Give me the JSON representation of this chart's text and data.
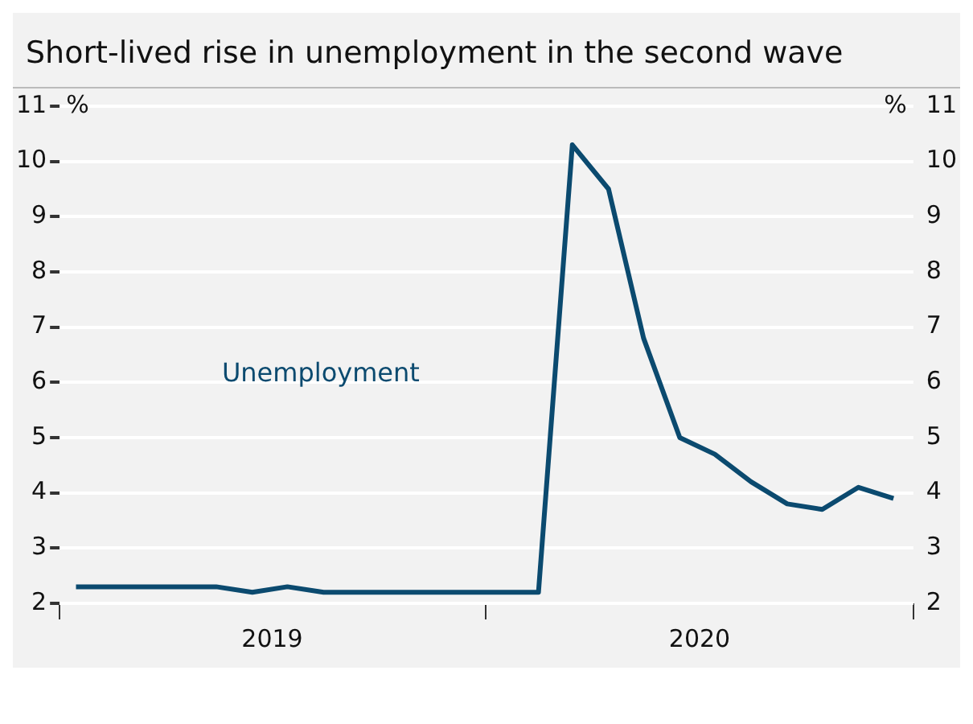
{
  "chart_data": {
    "type": "line",
    "title": "Short-lived rise in unemployment in the second wave",
    "x": [
      "2019-01-15",
      "2019-02-15",
      "2019-03-15",
      "2019-04-15",
      "2019-05-15",
      "2019-06-15",
      "2019-07-15",
      "2019-08-15",
      "2019-09-15",
      "2019-10-15",
      "2019-11-15",
      "2019-12-15",
      "2020-01-15",
      "2020-02-15",
      "2020-03-15",
      "2020-04-15",
      "2020-05-15",
      "2020-06-15",
      "2020-07-15",
      "2020-08-15",
      "2020-09-15",
      "2020-10-15",
      "2020-11-15",
      "2020-12-15"
    ],
    "series": [
      {
        "name": "Unemployment",
        "color": "#0b4a6f",
        "values": [
          2.3,
          2.3,
          2.3,
          2.3,
          2.3,
          2.2,
          2.3,
          2.2,
          2.2,
          2.2,
          2.2,
          2.2,
          2.2,
          2.2,
          10.3,
          9.5,
          6.8,
          5.0,
          4.7,
          4.2,
          3.8,
          3.7,
          4.1,
          3.9
        ]
      }
    ],
    "xlim": [
      "2019-01-01",
      "2021-01-01"
    ],
    "xticks": [
      {
        "value": "2019-01-01",
        "label": null
      },
      {
        "value": "2019-07-02",
        "label": "2019"
      },
      {
        "value": "2020-01-01",
        "label": null
      },
      {
        "value": "2020-07-02",
        "label": "2020"
      },
      {
        "value": "2021-01-01",
        "label": null
      }
    ],
    "ylabel": "%",
    "y2label": "%",
    "ylim": [
      2,
      11
    ],
    "yticks": [
      2,
      3,
      4,
      5,
      6,
      7,
      8,
      9,
      10,
      11
    ],
    "y2lim": [
      2,
      11
    ],
    "y2ticks": [
      2,
      3,
      4,
      5,
      6,
      7,
      8,
      9,
      10,
      11
    ],
    "grid": "y",
    "legend": false,
    "marker": "none",
    "line_style": "solid"
  }
}
